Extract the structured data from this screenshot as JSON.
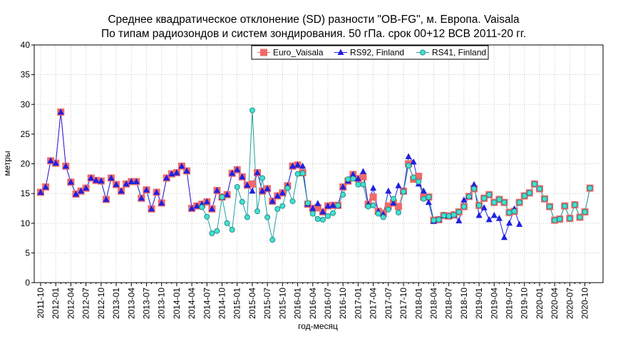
{
  "chart_data": {
    "type": "line",
    "title": [
      "Среднее квадратическое отклонение (SD) разности \"OB-FG\", м. Европа. Vaisala",
      "По типам радиозондов и систем зондирования. 50 гПа. срок 00+12 ВСВ 2011-20 гг."
    ],
    "xlabel": "год-месяц",
    "ylabel": "метры",
    "ylim": [
      0,
      40
    ],
    "yticks": [
      0,
      5,
      10,
      15,
      20,
      25,
      30,
      35,
      40
    ],
    "grid": true,
    "legend_position": "top-right",
    "x_start": "2011-10",
    "xtick_labels": [
      "2011-10",
      "2012-01",
      "2012-04",
      "2012-07",
      "2012-10",
      "2013-01",
      "2013-04",
      "2013-07",
      "2013-10",
      "2014-01",
      "2014-04",
      "2014-07",
      "2014-10",
      "2015-01",
      "2015-04",
      "2015-07",
      "2015-10",
      "2016-01",
      "2016-04",
      "2016-07",
      "2016-10",
      "2017-01",
      "2017-04",
      "2017-07",
      "2017-10",
      "2018-01",
      "2018-04",
      "2018-07",
      "2018-10",
      "2019-01",
      "2019-04",
      "2019-07",
      "2019-10",
      "2020-01",
      "2020-04",
      "2020-07",
      "2020-10"
    ],
    "series": [
      {
        "name": "Euro_Vaisala",
        "color": "#f06a6a",
        "marker": "square",
        "values": [
          15.2,
          16.1,
          20.5,
          20.1,
          28.7,
          19.6,
          16.9,
          14.9,
          15.4,
          15.9,
          17.6,
          17.2,
          17.1,
          14.0,
          17.6,
          16.5,
          15.4,
          16.6,
          17.0,
          17.0,
          14.2,
          15.6,
          12.4,
          15.2,
          13.4,
          17.6,
          18.3,
          18.5,
          19.6,
          18.8,
          12.5,
          12.9,
          13.2,
          13.6,
          12.4,
          15.5,
          14.4,
          14.8,
          18.4,
          19.0,
          17.8,
          16.4,
          16.6,
          18.5,
          15.4,
          15.8,
          13.7,
          14.6,
          15.1,
          16.3,
          19.6,
          19.8,
          18.5,
          13.2,
          12.5,
          12.6,
          11.9,
          12.9,
          13.0,
          13.0,
          16.1,
          17.1,
          18.2,
          17.5,
          17.8,
          13.2,
          14.4,
          12.0,
          11.7,
          12.9,
          13.4,
          12.8,
          15.4,
          20.0,
          17.4,
          17.9,
          14.4,
          14.4,
          10.5,
          10.6,
          11.3,
          11.2,
          11.4,
          11.9,
          12.8,
          14.5,
          15.8,
          13.0,
          14.2,
          14.8,
          13.5,
          14.0,
          13.5,
          11.8,
          12.0,
          13.5,
          14.6,
          15.1,
          16.6,
          15.8,
          14.1,
          12.8,
          10.5,
          10.7,
          12.9,
          10.8,
          13.1,
          11.0,
          11.9,
          15.9
        ]
      },
      {
        "name": "RS92, Finland",
        "color": "#2020e0",
        "marker": "triangle",
        "values": [
          15.2,
          16.1,
          20.5,
          20.1,
          28.7,
          19.6,
          16.9,
          14.9,
          15.4,
          15.9,
          17.6,
          17.2,
          17.1,
          14.0,
          17.6,
          16.5,
          15.4,
          16.6,
          17.0,
          17.0,
          14.2,
          15.6,
          12.4,
          15.2,
          13.4,
          17.6,
          18.3,
          18.5,
          19.6,
          18.8,
          12.5,
          12.9,
          13.2,
          13.6,
          12.4,
          15.5,
          14.4,
          14.8,
          18.4,
          19.0,
          17.8,
          16.4,
          15.4,
          18.5,
          15.4,
          15.8,
          13.7,
          14.6,
          15.1,
          16.3,
          19.6,
          19.8,
          19.6,
          13.2,
          12.5,
          13.3,
          11.9,
          12.9,
          13.0,
          13.0,
          16.1,
          17.1,
          18.2,
          17.5,
          18.7,
          13.2,
          15.9,
          12.0,
          11.5,
          15.4,
          13.4,
          16.3,
          15.4,
          21.2,
          20.3,
          16.6,
          15.4,
          13.5,
          10.3,
          10.6,
          11.3,
          11.2,
          11.4,
          10.4,
          13.9,
          14.5,
          16.5,
          11.3,
          12.6,
          10.6,
          11.3,
          10.8,
          7.6,
          10.0,
          12.4,
          9.8
        ]
      },
      {
        "name": "RS41, Finland",
        "color": "#40e0d0",
        "marker": "circle",
        "values": [
          null,
          null,
          null,
          null,
          null,
          null,
          null,
          null,
          null,
          null,
          null,
          null,
          null,
          null,
          null,
          null,
          null,
          null,
          null,
          null,
          null,
          null,
          null,
          null,
          null,
          null,
          null,
          null,
          null,
          null,
          null,
          null,
          12.7,
          11.1,
          8.3,
          8.7,
          14.4,
          10.0,
          8.9,
          16.1,
          13.6,
          11.0,
          29.0,
          12.0,
          17.6,
          11.0,
          7.2,
          12.4,
          12.9,
          15.9,
          13.7,
          18.3,
          18.4,
          13.4,
          11.6,
          10.7,
          10.6,
          11.2,
          11.7,
          13.0,
          14.8,
          17.4,
          17.5,
          16.5,
          16.5,
          12.8,
          13.0,
          11.6,
          11.0,
          12.3,
          14.1,
          11.8,
          15.3,
          19.7,
          17.7,
          17.0,
          14.1,
          14.4,
          10.5,
          10.6,
          11.3,
          11.2,
          11.4,
          11.9,
          12.8,
          14.5,
          15.8,
          13.0,
          14.2,
          14.8,
          13.5,
          14.0,
          13.5,
          11.8,
          12.0,
          13.5,
          14.6,
          15.1,
          16.6,
          15.8,
          14.1,
          12.8,
          10.5,
          10.7,
          12.9,
          10.8,
          13.1,
          11.0,
          11.9,
          15.9
        ]
      }
    ]
  }
}
